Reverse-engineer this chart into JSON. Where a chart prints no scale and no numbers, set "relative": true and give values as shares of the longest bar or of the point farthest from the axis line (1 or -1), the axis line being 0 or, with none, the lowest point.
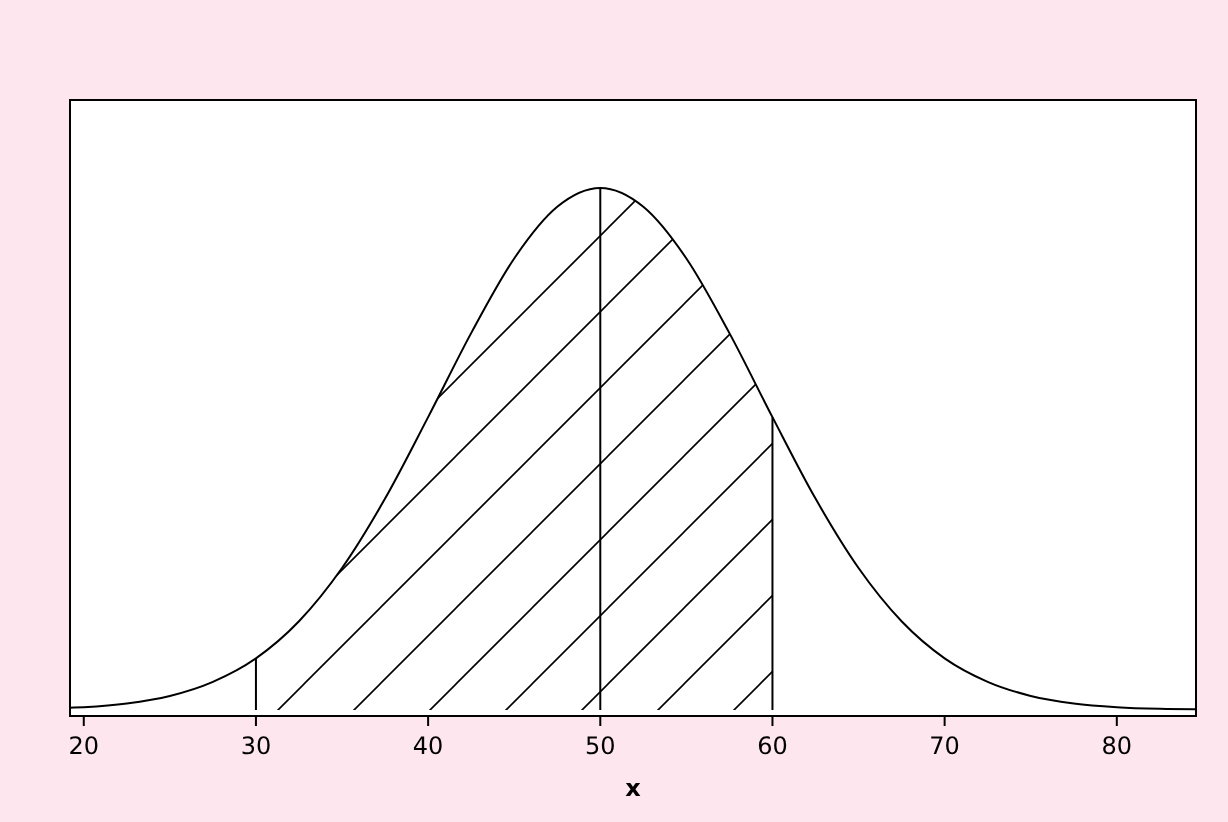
{
  "chart_data": {
    "type": "line",
    "relative": true,
    "xlabel": "x",
    "xlim": [
      19.2,
      84.6
    ],
    "xticks": [
      20,
      30,
      40,
      50,
      60,
      70,
      80
    ],
    "grid": false,
    "marker": "none",
    "line_style": "solid",
    "series": [
      {
        "color": "#000000",
        "x": [
          19.2,
          20,
          22.5,
          25,
          27.5,
          30,
          32.5,
          35,
          37.5,
          40,
          42.5,
          45,
          47.5,
          50,
          52.5,
          55,
          57.5,
          60,
          62.5,
          65,
          67.5,
          70,
          72.5,
          75,
          77.5,
          80,
          82.5,
          84.6
        ],
        "values": [
          0.0042,
          0.0055,
          0.0126,
          0.027,
          0.054,
          0.099,
          0.17,
          0.272,
          0.405,
          0.561,
          0.722,
          0.865,
          0.964,
          1,
          0.964,
          0.865,
          0.722,
          0.561,
          0.405,
          0.272,
          0.17,
          0.099,
          0.054,
          0.027,
          0.0126,
          0.0055,
          0.0024,
          0.0015
        ]
      },
      {
        "type": "area",
        "color": "#000000",
        "x": [
          30,
          32.5,
          35,
          37.5,
          40,
          42.5,
          45,
          47.5,
          50,
          52.5,
          55,
          57.5,
          60
        ],
        "values": [
          0.099,
          0.17,
          0.272,
          0.405,
          0.561,
          0.722,
          0.865,
          0.964,
          1,
          0.964,
          0.865,
          0.722,
          0.561
        ]
      }
    ],
    "ref_lines": [
      {
        "axis": "x",
        "value": 30
      },
      {
        "axis": "x",
        "value": 50
      },
      {
        "axis": "x",
        "value": 60
      }
    ]
  }
}
